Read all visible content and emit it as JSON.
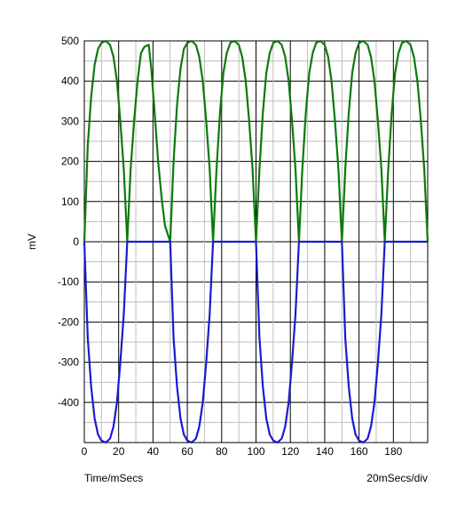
{
  "chart_data": {
    "type": "line",
    "title": "",
    "xlabel": "Time/mSecs",
    "ylabel": "mV",
    "scale_note": "20mSecs/div",
    "xlim": [
      0,
      200
    ],
    "ylim": [
      -500,
      500
    ],
    "x_ticks": [
      0,
      20,
      40,
      60,
      80,
      100,
      120,
      140,
      160,
      180
    ],
    "y_ticks": [
      500,
      400,
      300,
      200,
      100,
      0,
      -100,
      -200,
      -300,
      -400
    ],
    "grid": true,
    "series": [
      {
        "color": "#0a7a0a",
        "x": [
          0,
          2,
          4,
          6,
          8,
          10,
          12.5,
          15,
          17,
          19,
          21,
          23,
          25,
          27,
          29,
          31,
          33,
          35,
          37.5,
          39,
          41,
          43,
          45,
          47,
          50,
          52,
          54,
          56,
          58,
          60,
          62.5,
          65,
          67,
          69,
          71,
          73,
          75,
          77,
          79,
          81,
          83,
          85,
          87.5,
          90,
          92,
          94,
          96,
          98,
          100,
          102,
          104,
          106,
          108,
          110,
          112.5,
          115,
          117,
          119,
          121,
          123,
          125,
          127,
          129,
          131,
          133,
          135,
          137.5,
          140,
          142,
          144,
          146,
          148,
          150,
          152,
          154,
          156,
          158,
          160,
          162.5,
          165,
          167,
          169,
          171,
          173,
          175,
          177,
          179,
          181,
          183,
          185,
          187.5,
          190,
          192,
          194,
          196,
          198,
          200
        ],
        "values": [
          0,
          240,
          360,
          440,
          480,
          495,
          500,
          490,
          460,
          400,
          300,
          180,
          0,
          180,
          300,
          400,
          470,
          485,
          490,
          430,
          320,
          200,
          110,
          40,
          0,
          200,
          340,
          430,
          480,
          495,
          500,
          490,
          460,
          400,
          300,
          180,
          0,
          180,
          320,
          420,
          470,
          495,
          500,
          490,
          460,
          400,
          300,
          180,
          0,
          180,
          320,
          420,
          470,
          495,
          500,
          490,
          460,
          400,
          300,
          180,
          0,
          180,
          320,
          420,
          470,
          495,
          500,
          490,
          460,
          400,
          300,
          180,
          0,
          180,
          320,
          420,
          470,
          495,
          500,
          490,
          460,
          400,
          300,
          180,
          0,
          180,
          320,
          420,
          470,
          495,
          500,
          490,
          460,
          400,
          300,
          180,
          0
        ]
      },
      {
        "color": "#1a1ad0",
        "x": [
          0,
          2,
          4,
          6,
          8,
          10,
          12.5,
          15,
          17,
          19,
          21,
          23,
          25,
          37.5,
          50,
          52,
          54,
          56,
          58,
          60,
          62.5,
          65,
          67,
          69,
          71,
          73,
          75,
          87.5,
          100,
          102,
          104,
          106,
          108,
          110,
          112.5,
          115,
          117,
          119,
          121,
          123,
          125,
          137.5,
          150,
          152,
          154,
          156,
          158,
          160,
          162.5,
          165,
          167,
          169,
          171,
          173,
          175,
          187.5,
          200
        ],
        "values": [
          0,
          -240,
          -360,
          -440,
          -480,
          -495,
          -500,
          -490,
          -460,
          -400,
          -300,
          -180,
          0,
          0,
          0,
          -240,
          -360,
          -440,
          -480,
          -495,
          -500,
          -490,
          -460,
          -400,
          -300,
          -180,
          0,
          0,
          0,
          -240,
          -360,
          -440,
          -480,
          -495,
          -500,
          -490,
          -460,
          -400,
          -300,
          -180,
          0,
          0,
          0,
          -240,
          -360,
          -440,
          -480,
          -495,
          -500,
          -490,
          -460,
          -400,
          -300,
          -180,
          0,
          0,
          0
        ]
      }
    ]
  }
}
